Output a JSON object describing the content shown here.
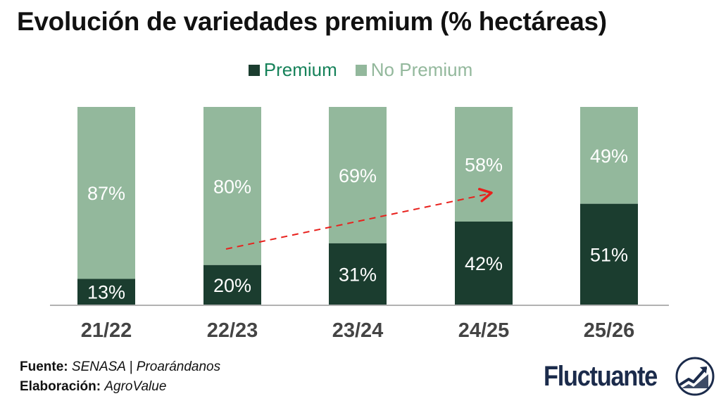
{
  "title": "Evolución de variedades premium (% hectáreas)",
  "colors": {
    "premium": "#1b3d2f",
    "no_premium": "#93b89c",
    "legend_premium_text": "#16825a",
    "legend_no_premium_text": "#93b89c",
    "trend_arrow": "#e8201c",
    "brand": "#1b2b4b"
  },
  "chart_data": {
    "type": "bar",
    "stacked": true,
    "categories": [
      "21/22",
      "22/23",
      "23/24",
      "24/25",
      "25/26"
    ],
    "series": [
      {
        "name": "Premium",
        "values": [
          13,
          20,
          31,
          42,
          51
        ],
        "labels": [
          "13%",
          "20%",
          "31%",
          "42%",
          "51%"
        ]
      },
      {
        "name": "No Premium",
        "values": [
          87,
          80,
          69,
          58,
          49
        ],
        "labels": [
          "87%",
          "80%",
          "69%",
          "58%",
          "49%"
        ]
      }
    ],
    "ylim": [
      0,
      100
    ],
    "legend_position": "top-center",
    "grid": false,
    "annotation": "dashed red trend arrow rising from 22/23 to 24/25"
  },
  "footer": {
    "source_label": "Fuente:",
    "source_value": "SENASA | Proarándanos",
    "credit_label": "Elaboración:",
    "credit_value": "AgroValue"
  },
  "brand": {
    "name": "Fluctuante",
    "icon": "fluctuante-logo-icon"
  }
}
